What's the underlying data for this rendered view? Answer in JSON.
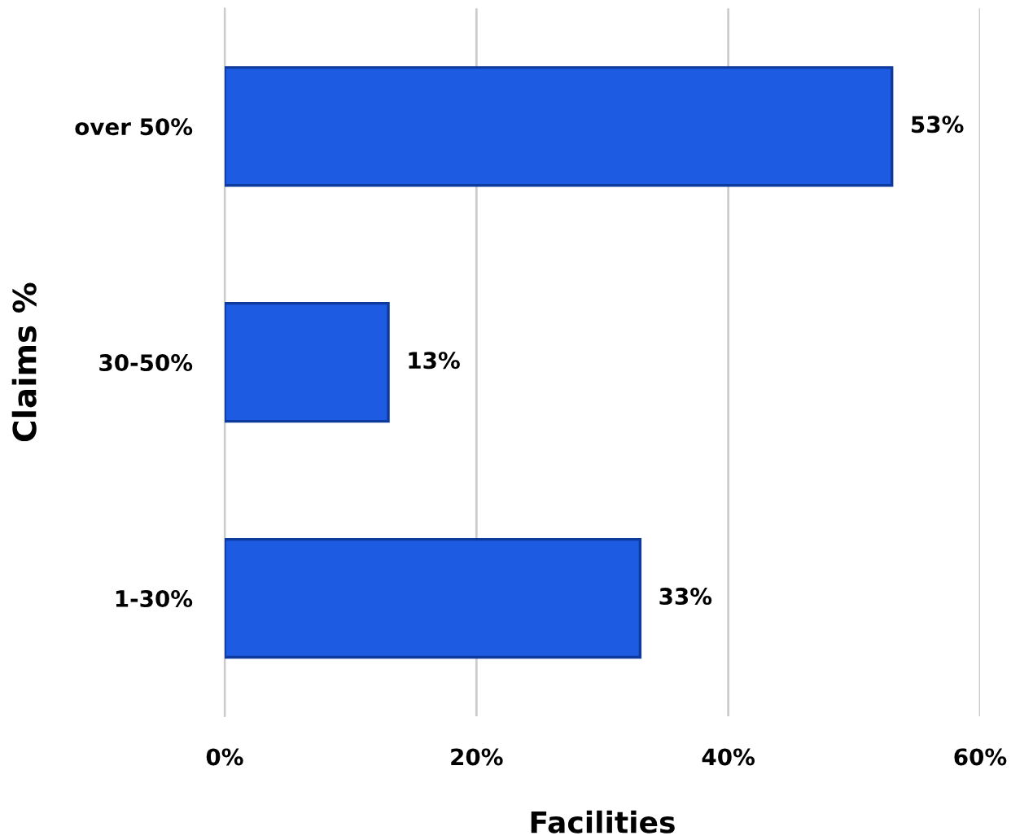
{
  "chart_data": {
    "type": "bar",
    "orientation": "horizontal",
    "xlabel": "Facilities",
    "ylabel": "Claims %",
    "categories": [
      "over 50%",
      "30-50%",
      "1-30%"
    ],
    "values": [
      53,
      13,
      33
    ],
    "value_labels": [
      "53%",
      "13%",
      "33%"
    ],
    "color": "#1d5be3",
    "xlim": [
      0,
      60
    ],
    "xticks": [
      {
        "value": 0,
        "label": "0%"
      },
      {
        "value": 20,
        "label": "20%"
      },
      {
        "value": 40,
        "label": "40%"
      },
      {
        "value": 60,
        "label": "60%"
      }
    ],
    "grid": "x",
    "legend": false
  }
}
